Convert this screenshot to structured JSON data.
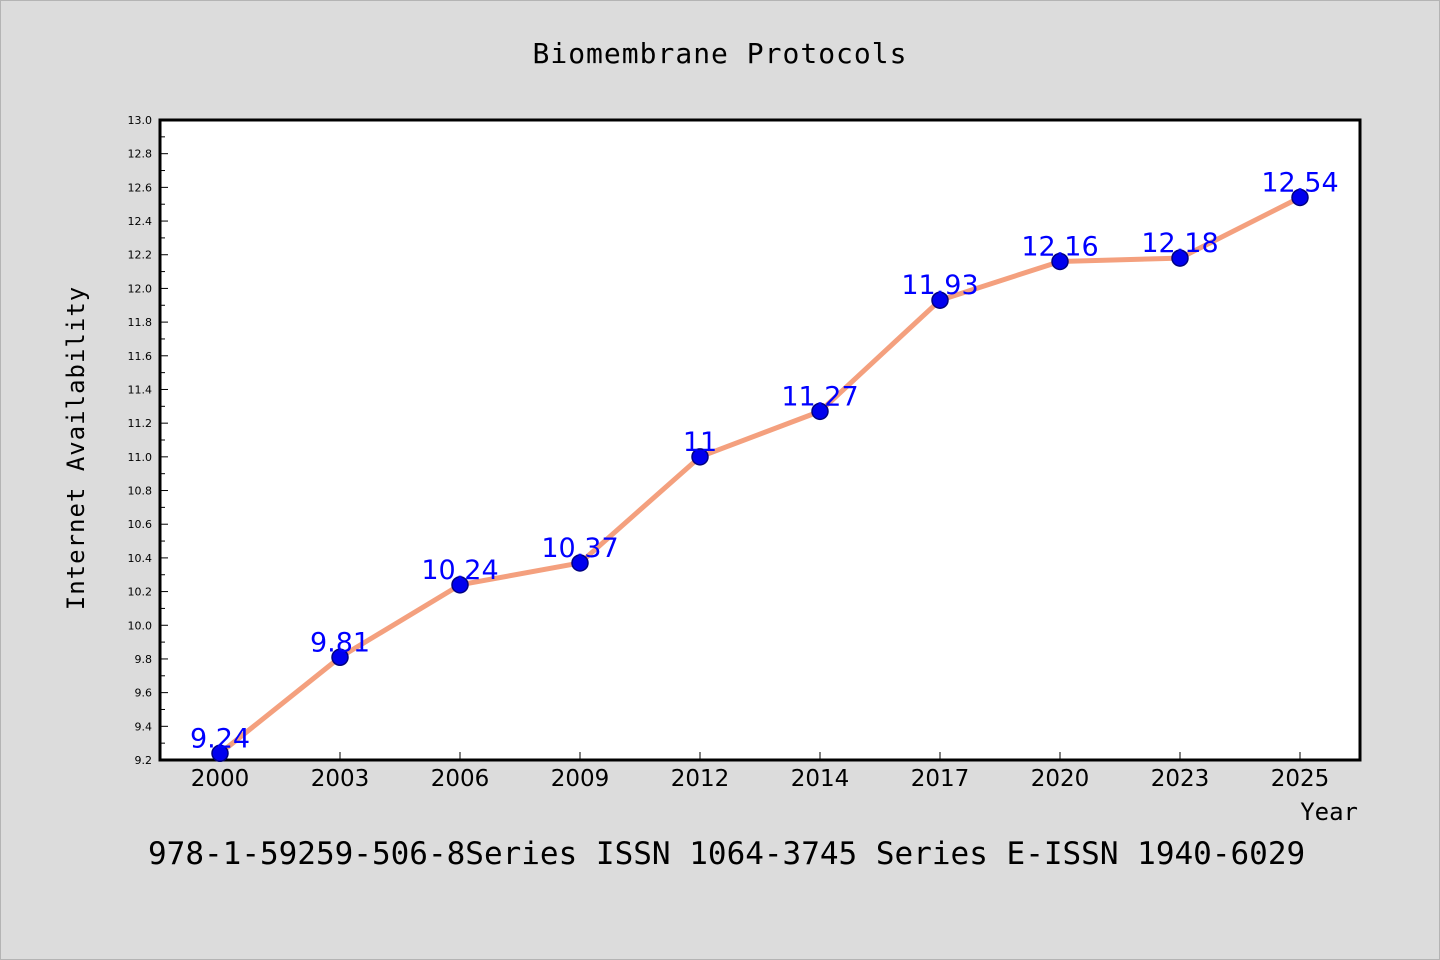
{
  "chart_data": {
    "type": "line",
    "title": "Biomembrane Protocols",
    "xlabel": "Year",
    "ylabel": "Internet Availability",
    "categories": [
      "2000",
      "2003",
      "2006",
      "2009",
      "2012",
      "2014",
      "2017",
      "2020",
      "2023",
      "2025"
    ],
    "series": [
      {
        "values": [
          9.24,
          9.81,
          10.24,
          10.37,
          11,
          11.27,
          11.93,
          12.16,
          12.18,
          12.54
        ],
        "data_labels": [
          "9.24",
          "9.81",
          "10.24",
          "10.37",
          "11",
          "11.27",
          "11.93",
          "12.16",
          "12.18",
          "12.54"
        ]
      }
    ],
    "ylim": [
      9.2,
      13.0
    ],
    "yticks": [
      "9.2",
      "9.4",
      "9.6",
      "9.8",
      "10.0",
      "10.2",
      "10.4",
      "10.6",
      "10.8",
      "11.0",
      "11.2",
      "11.4",
      "11.6",
      "11.8",
      "12.0",
      "12.2",
      "12.4",
      "12.6",
      "12.8",
      "13.0"
    ],
    "grid": false,
    "footer": "978-1-59259-506-8Series ISSN 1064-3745 Series E-ISSN 1940-6029",
    "colors": {
      "background": "#dcdcdc",
      "plot_background": "#ffffff",
      "line": "#f4a07e",
      "marker": "#0000ee",
      "marker_edge": "#000080",
      "data_label": "#0000ff",
      "text": "#000000"
    }
  }
}
